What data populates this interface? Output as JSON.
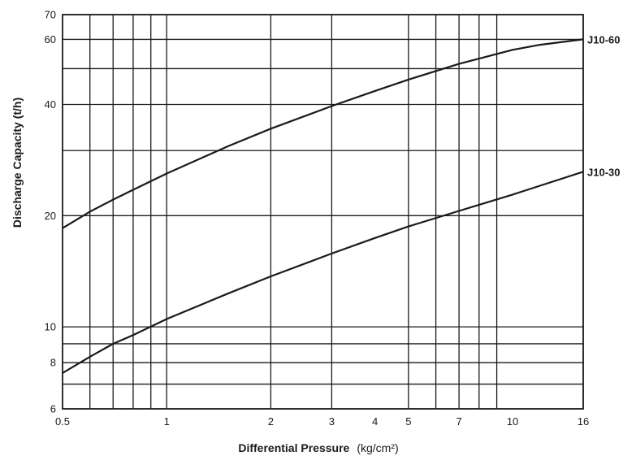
{
  "chart_data": {
    "type": "line",
    "xscale": "log",
    "yscale": "log",
    "xlim": [
      0.5,
      16
    ],
    "ylim": [
      6,
      70
    ],
    "grid": true,
    "xlabel_bold": "Differential Pressure",
    "xlabel_unit": "(kg/cm²)",
    "ylabel": "Discharge Capacity (t/h)",
    "x_ticks": [
      {
        "v": 0.5,
        "label": "0.5"
      },
      {
        "v": 1,
        "label": "1"
      },
      {
        "v": 2,
        "label": "2"
      },
      {
        "v": 3,
        "label": "3"
      },
      {
        "v": 4,
        "label": "4"
      },
      {
        "v": 5,
        "label": "5"
      },
      {
        "v": 7,
        "label": "7"
      },
      {
        "v": 10,
        "label": "10"
      },
      {
        "v": 16,
        "label": "16"
      }
    ],
    "x_grid": [
      0.6,
      0.7,
      0.8,
      0.9,
      1,
      2,
      3,
      5,
      6,
      7,
      8,
      9
    ],
    "y_ticks": [
      {
        "v": 6,
        "label": "6"
      },
      {
        "v": 8,
        "label": "8"
      },
      {
        "v": 10,
        "label": "10"
      },
      {
        "v": 20,
        "label": "20"
      },
      {
        "v": 40,
        "label": "40"
      },
      {
        "v": 60,
        "label": "60"
      },
      {
        "v": 70,
        "label": "70"
      }
    ],
    "y_grid": [
      7,
      8,
      9,
      10,
      20,
      30,
      40,
      50,
      60
    ],
    "series": [
      {
        "name": "J10-60",
        "x": [
          0.5,
          0.6,
          0.7,
          0.8,
          1,
          1.5,
          2,
          3,
          4,
          5,
          7,
          10,
          12,
          16
        ],
        "y": [
          18.5,
          20.5,
          22.1,
          23.5,
          26,
          30.8,
          34.4,
          39.6,
          43.5,
          46.7,
          51.5,
          56.2,
          58.0,
          60
        ]
      },
      {
        "name": "J10-30",
        "x": [
          0.5,
          0.6,
          0.7,
          0.8,
          1,
          1.5,
          2,
          3,
          4,
          5,
          7,
          10,
          12,
          16
        ],
        "y": [
          7.5,
          8.3,
          9.0,
          9.5,
          10.5,
          12.3,
          13.7,
          15.8,
          17.4,
          18.7,
          20.6,
          22.8,
          24.1,
          26.3
        ]
      }
    ]
  }
}
